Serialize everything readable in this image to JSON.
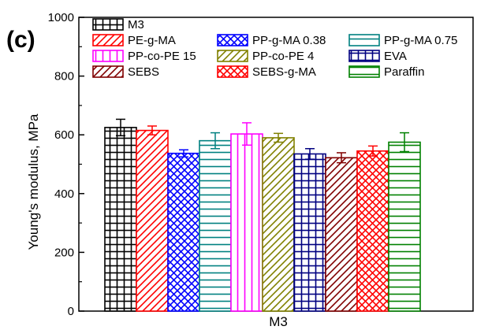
{
  "panel_label": "(c)",
  "chart_data": {
    "type": "bar",
    "xlabel": "M3",
    "ylabel": "Young's modulus, MPa",
    "ylim": [
      0,
      1000
    ],
    "yticks": [
      "0",
      "200",
      "400",
      "600",
      "800",
      "1000"
    ],
    "grid": false,
    "legend_position": "top-left",
    "series": [
      {
        "name": "M3",
        "value": 625,
        "error": 28,
        "color": "#000000",
        "pattern": "grid"
      },
      {
        "name": "PE-g-MA",
        "value": 615,
        "error": 15,
        "color": "#ff0000",
        "pattern": "diag-up"
      },
      {
        "name": "PP-g-MA 0.38",
        "value": 537,
        "error": 12,
        "color": "#0000ff",
        "pattern": "crosshatch"
      },
      {
        "name": "PP-g-MA 0.75",
        "value": 580,
        "error": 27,
        "color": "#008080",
        "pattern": "horizontal"
      },
      {
        "name": "PP-co-PE 15",
        "value": 603,
        "error": 38,
        "color": "#ff00ff",
        "pattern": "vertical"
      },
      {
        "name": "PP-co-PE 4",
        "value": 590,
        "error": 15,
        "color": "#808000",
        "pattern": "diag-up"
      },
      {
        "name": "EVA",
        "value": 535,
        "error": 18,
        "color": "#000080",
        "pattern": "grid"
      },
      {
        "name": "SEBS",
        "value": 522,
        "error": 17,
        "color": "#800000",
        "pattern": "diag-up"
      },
      {
        "name": "SEBS-g-MA",
        "value": 545,
        "error": 17,
        "color": "#ff0000",
        "pattern": "crosshatch"
      },
      {
        "name": "Paraffin",
        "value": 575,
        "error": 32,
        "color": "#008000",
        "pattern": "horizontal"
      }
    ]
  }
}
